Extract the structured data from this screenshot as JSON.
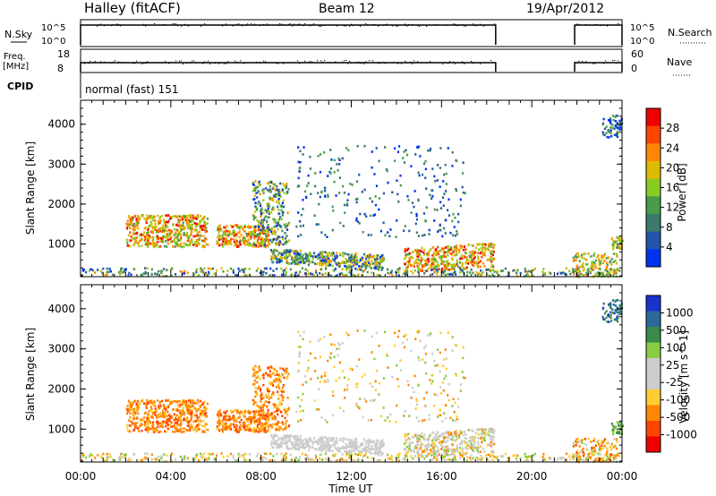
{
  "header": {
    "station": "Halley (fitACF)",
    "beam": "Beam 12",
    "date": "19/Apr/2012"
  },
  "summary_panels": {
    "nsky": {
      "label": "N.Sky",
      "ticks": [
        "10^5",
        "10^0"
      ]
    },
    "nsearch": {
      "label": "N.Search"
    },
    "freq": {
      "label_top": "Freq.",
      "label_unit": "[MHz]",
      "ticks": [
        "18",
        "8"
      ]
    },
    "nave": {
      "label": "Nave",
      "ticks": [
        "60",
        "0"
      ]
    },
    "cpid": {
      "label": "CPID",
      "value": "normal (fast) 151"
    }
  },
  "colors": {
    "power_scale": [
      "#0033ee",
      "#2255aa",
      "#3a7a6a",
      "#4a9a4a",
      "#88cc22",
      "#ddbb00",
      "#ff8800",
      "#ff4400",
      "#ee0000"
    ],
    "velocity_scale": [
      "#ee0000",
      "#ff4400",
      "#ff8800",
      "#ffcc33",
      "#cccccc",
      "#cccccc",
      "#88cc44",
      "#3a8a4a",
      "#2a6a9a",
      "#1a33cc"
    ]
  },
  "chart_data": [
    {
      "type": "heatmap",
      "name": "power",
      "ylabel": "Slant Range [km]",
      "ylim": [
        180,
        4600
      ],
      "yticks": [
        "1000",
        "2000",
        "3000",
        "4000"
      ],
      "colorbar": {
        "label": "Power [dB]",
        "ticks": [
          "28",
          "24",
          "20",
          "16",
          "12",
          "8",
          "4"
        ],
        "range": [
          0,
          30
        ]
      },
      "xlim_hours": [
        0,
        24
      ]
    },
    {
      "type": "heatmap",
      "name": "velocity",
      "ylabel": "Slant Range [km]",
      "ylim": [
        180,
        4600
      ],
      "yticks": [
        "1000",
        "2000",
        "3000",
        "4000"
      ],
      "colorbar": {
        "label": "Velocity [m s^-1]",
        "ticks": [
          "1000",
          "500",
          "100",
          "25",
          "-25",
          "-100",
          "-500",
          "-1000"
        ]
      },
      "xlabel": "Time UT",
      "xticks": [
        "00:00",
        "04:00",
        "08:00",
        "12:00",
        "16:00",
        "20:00",
        "00:00"
      ],
      "xlim_hours": [
        0,
        24
      ]
    }
  ]
}
